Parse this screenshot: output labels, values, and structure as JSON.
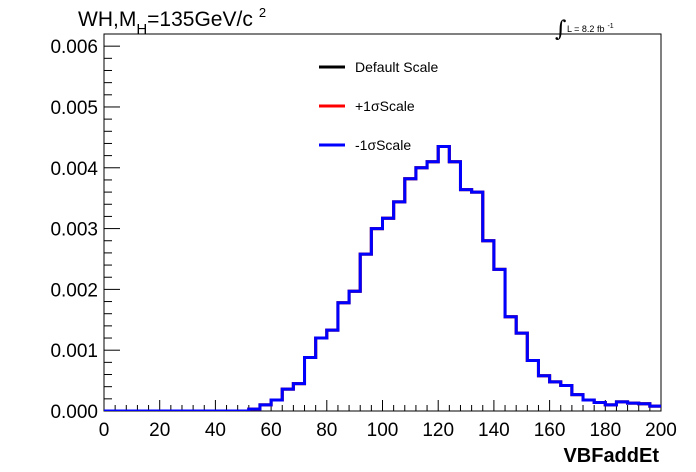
{
  "chart_data": {
    "type": "line",
    "title_main": "WH,M",
    "title_sub": "H",
    "title_rest": "=135GeV/c",
    "title_sup": "2",
    "lumi_symbol": "∫",
    "lumi_label": "L = 8.2 fb",
    "lumi_sup": "-1",
    "xlabel": "VBFaddEt",
    "ylabel": "",
    "xlim": [
      0,
      200
    ],
    "ylim": [
      0,
      0.0062
    ],
    "x_ticks": [
      "0",
      "20",
      "40",
      "60",
      "80",
      "100",
      "120",
      "140",
      "160",
      "180",
      "200"
    ],
    "y_ticks": [
      "0.000",
      "0.001",
      "0.002",
      "0.003",
      "0.004",
      "0.005",
      "0.006"
    ],
    "legend_position": "top-center",
    "bin_width": 4,
    "series": [
      {
        "name": "Default Scale",
        "color": "#000000",
        "values": [
          0,
          0,
          0,
          0,
          0,
          0,
          0,
          0,
          0,
          0,
          0,
          0,
          0,
          3e-05,
          0.0001,
          0.00018,
          0.00036,
          0.00045,
          0.00088,
          0.0012,
          0.00133,
          0.00178,
          0.00197,
          0.00258,
          0.003,
          0.00317,
          0.00344,
          0.00382,
          0.004,
          0.0041,
          0.00435,
          0.0041,
          0.00364,
          0.0036,
          0.0028,
          0.00233,
          0.00155,
          0.00128,
          0.00083,
          0.00058,
          0.00048,
          0.00042,
          0.00027,
          0.00018,
          0.00014,
          0.0001,
          0.00015,
          0.00013,
          0.00012,
          8e-05
        ]
      },
      {
        "name": "+1σScale",
        "color": "#ff0000",
        "values": [
          0,
          0,
          0,
          0,
          0,
          0,
          0,
          0,
          0,
          0,
          0,
          0,
          0,
          3e-05,
          0.0001,
          0.00018,
          0.00036,
          0.00045,
          0.00088,
          0.0012,
          0.00133,
          0.00178,
          0.00197,
          0.00258,
          0.003,
          0.00317,
          0.00344,
          0.00382,
          0.004,
          0.0041,
          0.00435,
          0.0041,
          0.00364,
          0.0036,
          0.0028,
          0.00233,
          0.00155,
          0.00128,
          0.00083,
          0.00058,
          0.00048,
          0.00042,
          0.00027,
          0.00018,
          0.00014,
          0.0001,
          0.00015,
          0.00013,
          0.00012,
          8e-05
        ]
      },
      {
        "name": "-1σScale",
        "color": "#0000ff",
        "values": [
          0,
          0,
          0,
          0,
          0,
          0,
          0,
          0,
          0,
          0,
          0,
          0,
          0,
          3e-05,
          0.0001,
          0.00018,
          0.00036,
          0.00045,
          0.00088,
          0.0012,
          0.00133,
          0.00178,
          0.00197,
          0.00258,
          0.003,
          0.00317,
          0.00344,
          0.00382,
          0.004,
          0.0041,
          0.00435,
          0.0041,
          0.00364,
          0.0036,
          0.0028,
          0.00233,
          0.00155,
          0.00128,
          0.00083,
          0.00058,
          0.00048,
          0.00042,
          0.00027,
          0.00018,
          0.00014,
          0.0001,
          0.00015,
          0.00013,
          0.00012,
          8e-05
        ]
      }
    ]
  }
}
